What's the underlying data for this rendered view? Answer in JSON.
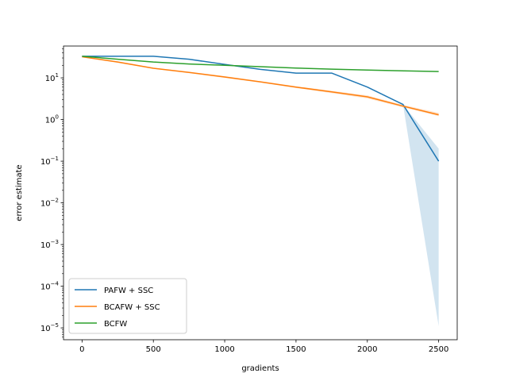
{
  "chart_data": {
    "type": "line",
    "title": "",
    "xlabel": "gradients",
    "ylabel": "error estimate",
    "xlim": [
      -130,
      2630
    ],
    "ylim": [
      5.2e-06,
      58
    ],
    "yscale": "log",
    "grid": false,
    "legend_position": "lower-left",
    "x_ticks": [
      0,
      500,
      1000,
      1500,
      2000,
      2500
    ],
    "y_ticks": [
      {
        "value": 1e-05,
        "base": "10",
        "exp": "−5"
      },
      {
        "value": 0.0001,
        "base": "10",
        "exp": "−4"
      },
      {
        "value": 0.001,
        "base": "10",
        "exp": "−3"
      },
      {
        "value": 0.01,
        "base": "10",
        "exp": "−2"
      },
      {
        "value": 0.1,
        "base": "10",
        "exp": "−1"
      },
      {
        "value": 1,
        "base": "10",
        "exp": "0"
      },
      {
        "value": 10,
        "base": "10",
        "exp": "1"
      }
    ],
    "series": [
      {
        "name": "PAFW + SSC",
        "color": "#1f77b4",
        "x": [
          0,
          250,
          500,
          750,
          1000,
          1250,
          1500,
          1750,
          2000,
          2250,
          2500
        ],
        "y": [
          33,
          33,
          33,
          28,
          21,
          16,
          13,
          13,
          6,
          2.3,
          0.1
        ],
        "band_x": [
          0,
          250,
          500,
          750,
          1000,
          1250,
          1500,
          1750,
          2000,
          2250,
          2500
        ],
        "band_low": [
          33,
          33,
          33,
          28,
          21,
          16,
          13,
          13,
          6,
          2.3,
          1.1e-05
        ],
        "band_high": [
          33,
          33,
          33,
          28,
          21,
          16,
          13,
          13,
          6,
          2.3,
          0.2
        ]
      },
      {
        "name": "BCAFW + SSC",
        "color": "#ff7f0e",
        "x": [
          0,
          250,
          500,
          750,
          1000,
          1250,
          1500,
          1750,
          2000,
          2250,
          2500
        ],
        "y": [
          32,
          24,
          17,
          13.5,
          10.5,
          8,
          6,
          4.6,
          3.5,
          2.1,
          1.3
        ],
        "band_x": [
          0,
          250,
          500,
          750,
          1000,
          1250,
          1500,
          1750,
          2000,
          2250,
          2500
        ],
        "band_low": [
          31,
          23,
          16.5,
          13,
          10,
          7.7,
          5.7,
          4.3,
          3.2,
          1.95,
          1.2
        ],
        "band_high": [
          33,
          25,
          17.5,
          14,
          11,
          8.3,
          6.3,
          4.9,
          3.8,
          2.25,
          1.45
        ]
      },
      {
        "name": "BCFW",
        "color": "#2ca02c",
        "x": [
          0,
          250,
          500,
          750,
          1000,
          1250,
          1500,
          1750,
          2000,
          2250,
          2500
        ],
        "y": [
          33,
          28,
          24,
          21.5,
          20,
          18.5,
          17.2,
          16.2,
          15.4,
          14.7,
          14.2
        ]
      }
    ]
  }
}
